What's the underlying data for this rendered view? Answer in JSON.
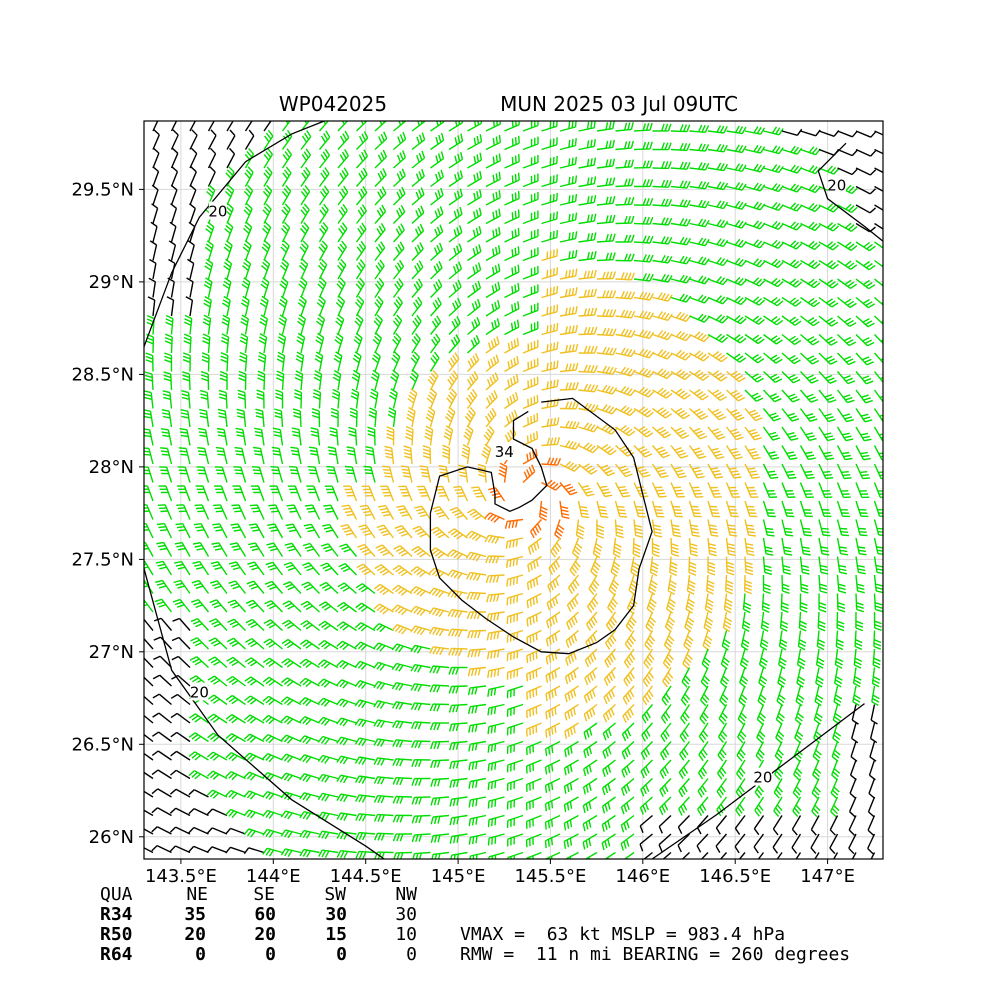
{
  "header": {
    "storm_id": "WP042025",
    "run_label": "MUN 2025 03 Jul 09UTC"
  },
  "chart_data": {
    "type": "wind-barb-map",
    "lon_range": [
      143.3,
      147.3
    ],
    "lat_range": [
      25.88,
      29.87
    ],
    "x_ticks": [
      {
        "value": 143.5,
        "label": "143.5°E"
      },
      {
        "value": 144.0,
        "label": "144°E"
      },
      {
        "value": 144.5,
        "label": "144.5°E"
      },
      {
        "value": 145.0,
        "label": "145°E"
      },
      {
        "value": 145.5,
        "label": "145.5°E"
      },
      {
        "value": 146.0,
        "label": "146°E"
      },
      {
        "value": 146.5,
        "label": "146.5°E"
      },
      {
        "value": 147.0,
        "label": "147°E"
      }
    ],
    "y_ticks": [
      {
        "value": 26.0,
        "label": "26°N"
      },
      {
        "value": 26.5,
        "label": "26.5°N"
      },
      {
        "value": 27.0,
        "label": "27°N"
      },
      {
        "value": 27.5,
        "label": "27.5°N"
      },
      {
        "value": 28.0,
        "label": "28°N"
      },
      {
        "value": 28.5,
        "label": "28.5°N"
      },
      {
        "value": 29.0,
        "label": "29°N"
      },
      {
        "value": 29.5,
        "label": "29.5°N"
      }
    ],
    "grid": true,
    "center": {
      "lon": 145.38,
      "lat": 27.85
    },
    "contours": [
      {
        "level": "34",
        "points": [
          [
            145.45,
            28.35
          ],
          [
            145.62,
            28.37
          ],
          [
            145.85,
            28.2
          ],
          [
            145.95,
            28.05
          ],
          [
            146.0,
            27.85
          ],
          [
            146.05,
            27.65
          ],
          [
            145.98,
            27.45
          ],
          [
            145.95,
            27.25
          ],
          [
            145.85,
            27.12
          ],
          [
            145.75,
            27.05
          ],
          [
            145.6,
            26.99
          ],
          [
            145.45,
            27.0
          ],
          [
            145.3,
            27.08
          ],
          [
            145.15,
            27.18
          ],
          [
            145.02,
            27.28
          ],
          [
            144.9,
            27.4
          ],
          [
            144.85,
            27.55
          ],
          [
            144.85,
            27.75
          ],
          [
            144.9,
            27.95
          ],
          [
            145.05,
            28.0
          ],
          [
            145.18,
            27.97
          ],
          [
            145.2,
            27.85
          ],
          [
            145.2,
            27.8
          ],
          [
            145.28,
            27.76
          ],
          [
            145.33,
            27.78
          ],
          [
            145.4,
            27.82
          ],
          [
            145.48,
            27.9
          ],
          [
            145.45,
            28.0
          ],
          [
            145.4,
            28.1
          ],
          [
            145.3,
            28.15
          ],
          [
            145.3,
            28.25
          ],
          [
            145.38,
            28.3
          ]
        ]
      },
      {
        "level": "20",
        "points": [
          [
            143.3,
            28.65
          ],
          [
            143.45,
            29.05
          ],
          [
            143.6,
            29.35
          ],
          [
            143.85,
            29.65
          ],
          [
            144.1,
            29.8
          ],
          [
            144.3,
            29.88
          ]
        ]
      },
      {
        "level": "20",
        "points": [
          [
            143.3,
            27.45
          ],
          [
            143.45,
            26.9
          ],
          [
            143.7,
            26.55
          ],
          [
            144.1,
            26.2
          ],
          [
            144.5,
            25.95
          ],
          [
            144.6,
            25.88
          ]
        ]
      },
      {
        "level": "20",
        "points": [
          [
            146.05,
            25.88
          ],
          [
            146.4,
            26.12
          ],
          [
            146.8,
            26.42
          ],
          [
            147.2,
            26.72
          ]
        ]
      },
      {
        "level": "20",
        "points": [
          [
            147.1,
            29.75
          ],
          [
            146.95,
            29.6
          ],
          [
            147.0,
            29.45
          ],
          [
            147.2,
            29.3
          ],
          [
            147.3,
            29.22
          ]
        ]
      }
    ],
    "contour_labels": [
      {
        "text": "34",
        "lon": 145.25,
        "lat": 28.08
      },
      {
        "text": "20",
        "lon": 143.7,
        "lat": 29.38
      },
      {
        "text": "20",
        "lon": 143.6,
        "lat": 26.78
      },
      {
        "text": "20",
        "lon": 146.65,
        "lat": 26.32
      },
      {
        "text": "20",
        "lon": 147.05,
        "lat": 29.52
      }
    ],
    "colors": {
      "calm": "#000000",
      "gale": "#00dd00",
      "storm": "#f0c020",
      "intense": "#ff6a00",
      "contour": "#000000"
    }
  },
  "table": {
    "headers": [
      "QUA",
      "NE",
      "SE",
      "SW",
      "NW"
    ],
    "rows": [
      {
        "label": "R34",
        "values": [
          "35",
          "60",
          "30",
          "30"
        ]
      },
      {
        "label": "R50",
        "values": [
          "20",
          "20",
          "15",
          "10"
        ]
      },
      {
        "label": "R64",
        "values": [
          "0",
          "0",
          "0",
          "0"
        ]
      }
    ]
  },
  "summary": {
    "line1": "VMAX =  63 kt MSLP = 983.4 hPa",
    "line2": "RMW =  11 n mi BEARING = 260 degrees"
  }
}
